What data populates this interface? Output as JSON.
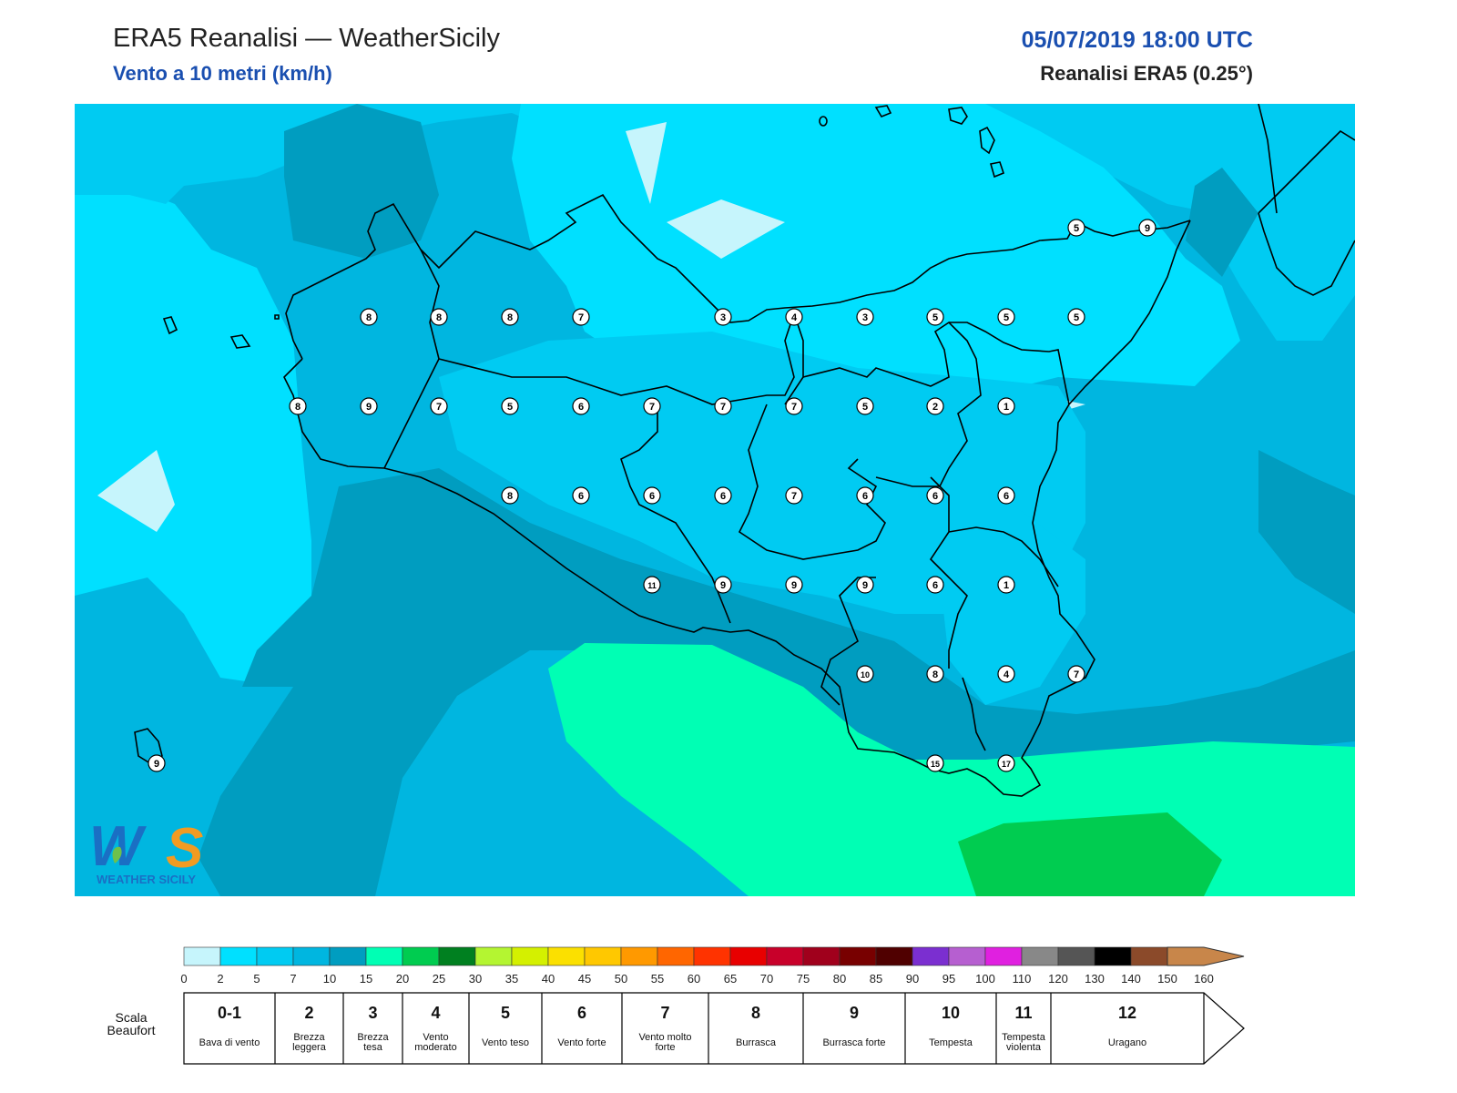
{
  "header": {
    "title": "ERA5 Reanalisi — WeatherSicily",
    "subtitle": "Vento a 10 metri (km/h)",
    "datetime": "05/07/2019 18:00 UTC",
    "source": "Reanalisi ERA5 (0.25°)"
  },
  "logo": {
    "text": "WEATHER SICILY",
    "letters": "WS"
  },
  "station_values": [
    {
      "v": "5"
    },
    {
      "v": "9"
    },
    {
      "v": "8"
    },
    {
      "v": "8"
    },
    {
      "v": "8"
    },
    {
      "v": "7"
    },
    {
      "v": "3"
    },
    {
      "v": "4"
    },
    {
      "v": "3"
    },
    {
      "v": "5"
    },
    {
      "v": "5"
    },
    {
      "v": "5"
    },
    {
      "v": "8"
    },
    {
      "v": "9"
    },
    {
      "v": "7"
    },
    {
      "v": "5"
    },
    {
      "v": "6"
    },
    {
      "v": "7"
    },
    {
      "v": "7"
    },
    {
      "v": "7"
    },
    {
      "v": "5"
    },
    {
      "v": "2"
    },
    {
      "v": "1"
    },
    {
      "v": "8"
    },
    {
      "v": "6"
    },
    {
      "v": "6"
    },
    {
      "v": "6"
    },
    {
      "v": "7"
    },
    {
      "v": "6"
    },
    {
      "v": "6"
    },
    {
      "v": "6"
    },
    {
      "v": "11"
    },
    {
      "v": "9"
    },
    {
      "v": "9"
    },
    {
      "v": "9"
    },
    {
      "v": "6"
    },
    {
      "v": "1"
    },
    {
      "v": "10"
    },
    {
      "v": "8"
    },
    {
      "v": "4"
    },
    {
      "v": "7"
    },
    {
      "v": "9"
    },
    {
      "v": "15"
    },
    {
      "v": "17"
    }
  ],
  "colorbar": {
    "colors": [
      "#c6f5fc",
      "#00e0ff",
      "#00cbf2",
      "#00b6e0",
      "#009dc0",
      "#00ffb4",
      "#00cc50",
      "#008020",
      "#b4f531",
      "#d4f000",
      "#fbe000",
      "#ffc800",
      "#ff9900",
      "#ff6600",
      "#ff3300",
      "#e80000",
      "#c8002a",
      "#a0001c",
      "#780000",
      "#500000",
      "#7b2fd0",
      "#b65fd0",
      "#e020e0",
      "#888888",
      "#555555",
      "#000000",
      "#8b4a2a",
      "#c8864a"
    ],
    "ticks": [
      "0",
      "2",
      "5",
      "7",
      "10",
      "15",
      "20",
      "25",
      "30",
      "35",
      "40",
      "45",
      "50",
      "55",
      "60",
      "65",
      "70",
      "75",
      "80",
      "85",
      "90",
      "95",
      "100",
      "110",
      "120",
      "130",
      "140",
      "150",
      "160"
    ]
  },
  "beaufort": {
    "label": "Scala Beaufort",
    "cells": [
      {
        "num": "0-1",
        "desc": "Bava di vento"
      },
      {
        "num": "2",
        "desc": "Brezza leggera"
      },
      {
        "num": "3",
        "desc": "Brezza tesa"
      },
      {
        "num": "4",
        "desc": "Vento moderato"
      },
      {
        "num": "5",
        "desc": "Vento teso"
      },
      {
        "num": "6",
        "desc": "Vento forte"
      },
      {
        "num": "7",
        "desc": "Vento molto forte"
      },
      {
        "num": "8",
        "desc": "Burrasca"
      },
      {
        "num": "9",
        "desc": "Burrasca forte"
      },
      {
        "num": "10",
        "desc": "Tempesta"
      },
      {
        "num": "11",
        "desc": "Tempesta violenta"
      },
      {
        "num": "12",
        "desc": "Uragano"
      }
    ]
  }
}
